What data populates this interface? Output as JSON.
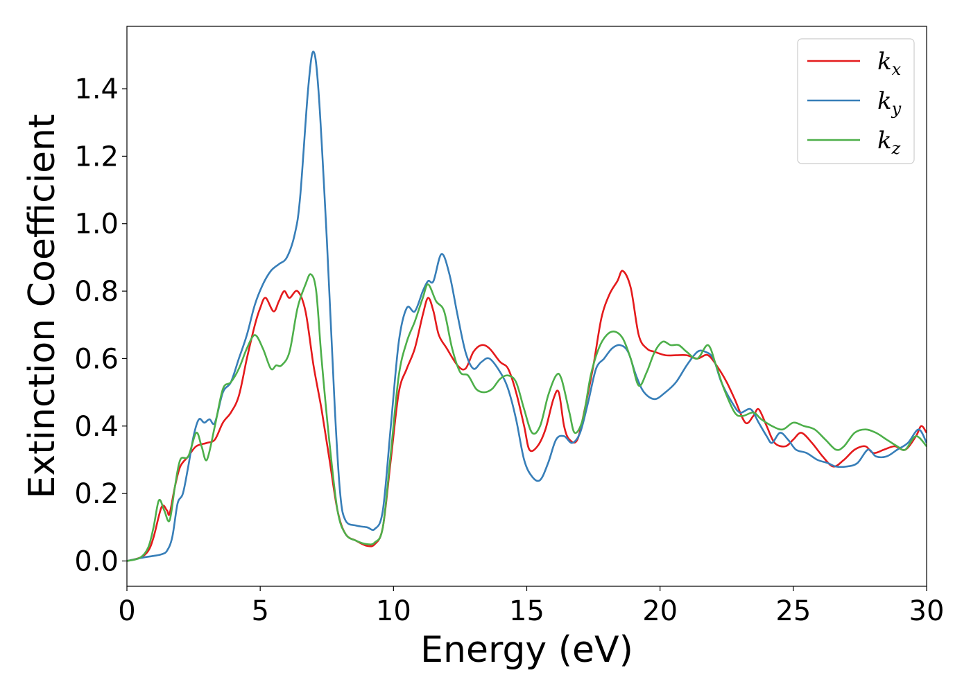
{
  "chart_data": {
    "type": "line",
    "title": "",
    "xlabel": "Energy (eV)",
    "ylabel": "Extinction Coefficient",
    "xlim": [
      0,
      30
    ],
    "ylim": [
      -0.075,
      1.585
    ],
    "xticks": [
      0,
      5,
      10,
      15,
      20,
      25,
      30
    ],
    "yticks": [
      0.0,
      0.2,
      0.4,
      0.6,
      0.8,
      1.0,
      1.2,
      1.4
    ],
    "grid": false,
    "legend": "top-right",
    "series": [
      {
        "name": "k",
        "subscript": "x",
        "color": "#e41a1c",
        "points": [
          [
            0,
            0
          ],
          [
            0.5,
            0.01
          ],
          [
            0.8,
            0.03
          ],
          [
            1.0,
            0.07
          ],
          [
            1.3,
            0.16
          ],
          [
            1.5,
            0.15
          ],
          [
            1.6,
            0.14
          ],
          [
            1.8,
            0.22
          ],
          [
            2.0,
            0.28
          ],
          [
            2.3,
            0.31
          ],
          [
            2.6,
            0.34
          ],
          [
            3.0,
            0.35
          ],
          [
            3.3,
            0.36
          ],
          [
            3.6,
            0.41
          ],
          [
            3.9,
            0.44
          ],
          [
            4.2,
            0.49
          ],
          [
            4.5,
            0.6
          ],
          [
            4.8,
            0.7
          ],
          [
            5.0,
            0.75
          ],
          [
            5.2,
            0.78
          ],
          [
            5.5,
            0.74
          ],
          [
            5.7,
            0.77
          ],
          [
            5.9,
            0.8
          ],
          [
            6.1,
            0.78
          ],
          [
            6.4,
            0.8
          ],
          [
            6.7,
            0.74
          ],
          [
            7.0,
            0.58
          ],
          [
            7.3,
            0.45
          ],
          [
            7.6,
            0.3
          ],
          [
            7.9,
            0.15
          ],
          [
            8.2,
            0.08
          ],
          [
            8.6,
            0.06
          ],
          [
            9.0,
            0.045
          ],
          [
            9.3,
            0.05
          ],
          [
            9.6,
            0.1
          ],
          [
            9.9,
            0.3
          ],
          [
            10.2,
            0.5
          ],
          [
            10.5,
            0.57
          ],
          [
            10.8,
            0.63
          ],
          [
            11.1,
            0.73
          ],
          [
            11.3,
            0.78
          ],
          [
            11.5,
            0.74
          ],
          [
            11.7,
            0.67
          ],
          [
            12.0,
            0.63
          ],
          [
            12.4,
            0.58
          ],
          [
            12.7,
            0.57
          ],
          [
            13.0,
            0.62
          ],
          [
            13.3,
            0.64
          ],
          [
            13.6,
            0.63
          ],
          [
            14.0,
            0.59
          ],
          [
            14.3,
            0.57
          ],
          [
            14.6,
            0.5
          ],
          [
            14.9,
            0.4
          ],
          [
            15.1,
            0.33
          ],
          [
            15.4,
            0.34
          ],
          [
            15.7,
            0.39
          ],
          [
            16.0,
            0.48
          ],
          [
            16.2,
            0.5
          ],
          [
            16.4,
            0.4
          ],
          [
            16.6,
            0.36
          ],
          [
            16.9,
            0.36
          ],
          [
            17.2,
            0.46
          ],
          [
            17.5,
            0.58
          ],
          [
            17.8,
            0.72
          ],
          [
            18.1,
            0.79
          ],
          [
            18.4,
            0.83
          ],
          [
            18.6,
            0.86
          ],
          [
            18.9,
            0.81
          ],
          [
            19.2,
            0.67
          ],
          [
            19.5,
            0.63
          ],
          [
            19.8,
            0.62
          ],
          [
            20.2,
            0.61
          ],
          [
            20.6,
            0.61
          ],
          [
            21.0,
            0.61
          ],
          [
            21.4,
            0.6
          ],
          [
            21.8,
            0.61
          ],
          [
            22.2,
            0.57
          ],
          [
            22.5,
            0.53
          ],
          [
            22.8,
            0.48
          ],
          [
            23.2,
            0.41
          ],
          [
            23.5,
            0.43
          ],
          [
            23.7,
            0.45
          ],
          [
            24.0,
            0.4
          ],
          [
            24.3,
            0.35
          ],
          [
            24.7,
            0.34
          ],
          [
            25.0,
            0.36
          ],
          [
            25.3,
            0.38
          ],
          [
            25.7,
            0.35
          ],
          [
            26.1,
            0.31
          ],
          [
            26.5,
            0.28
          ],
          [
            26.9,
            0.3
          ],
          [
            27.3,
            0.33
          ],
          [
            27.7,
            0.34
          ],
          [
            28.0,
            0.32
          ],
          [
            28.4,
            0.33
          ],
          [
            28.8,
            0.34
          ],
          [
            29.2,
            0.33
          ],
          [
            29.6,
            0.37
          ],
          [
            29.8,
            0.4
          ],
          [
            30.0,
            0.38
          ]
        ]
      },
      {
        "name": "k",
        "subscript": "y",
        "color": "#377eb8",
        "points": [
          [
            0,
            0
          ],
          [
            0.6,
            0.01
          ],
          [
            1.0,
            0.015
          ],
          [
            1.3,
            0.02
          ],
          [
            1.5,
            0.03
          ],
          [
            1.7,
            0.07
          ],
          [
            1.9,
            0.17
          ],
          [
            2.1,
            0.2
          ],
          [
            2.3,
            0.28
          ],
          [
            2.5,
            0.37
          ],
          [
            2.7,
            0.42
          ],
          [
            2.9,
            0.41
          ],
          [
            3.1,
            0.42
          ],
          [
            3.3,
            0.41
          ],
          [
            3.6,
            0.5
          ],
          [
            3.9,
            0.53
          ],
          [
            4.2,
            0.6
          ],
          [
            4.5,
            0.67
          ],
          [
            4.8,
            0.76
          ],
          [
            5.1,
            0.82
          ],
          [
            5.4,
            0.86
          ],
          [
            5.7,
            0.88
          ],
          [
            6.0,
            0.9
          ],
          [
            6.3,
            0.97
          ],
          [
            6.5,
            1.08
          ],
          [
            6.8,
            1.4
          ],
          [
            7.0,
            1.51
          ],
          [
            7.2,
            1.38
          ],
          [
            7.5,
            0.95
          ],
          [
            7.8,
            0.45
          ],
          [
            8.0,
            0.2
          ],
          [
            8.2,
            0.12
          ],
          [
            8.6,
            0.105
          ],
          [
            9.0,
            0.1
          ],
          [
            9.3,
            0.095
          ],
          [
            9.6,
            0.15
          ],
          [
            9.9,
            0.4
          ],
          [
            10.2,
            0.65
          ],
          [
            10.5,
            0.75
          ],
          [
            10.8,
            0.74
          ],
          [
            11.1,
            0.8
          ],
          [
            11.3,
            0.83
          ],
          [
            11.5,
            0.83
          ],
          [
            11.8,
            0.91
          ],
          [
            12.1,
            0.85
          ],
          [
            12.4,
            0.73
          ],
          [
            12.7,
            0.62
          ],
          [
            13.0,
            0.57
          ],
          [
            13.3,
            0.59
          ],
          [
            13.6,
            0.6
          ],
          [
            14.0,
            0.56
          ],
          [
            14.3,
            0.51
          ],
          [
            14.6,
            0.42
          ],
          [
            14.9,
            0.3
          ],
          [
            15.2,
            0.25
          ],
          [
            15.5,
            0.24
          ],
          [
            15.8,
            0.29
          ],
          [
            16.1,
            0.36
          ],
          [
            16.4,
            0.37
          ],
          [
            16.7,
            0.35
          ],
          [
            17.0,
            0.38
          ],
          [
            17.3,
            0.47
          ],
          [
            17.6,
            0.57
          ],
          [
            17.9,
            0.6
          ],
          [
            18.2,
            0.63
          ],
          [
            18.5,
            0.64
          ],
          [
            18.8,
            0.62
          ],
          [
            19.1,
            0.55
          ],
          [
            19.4,
            0.5
          ],
          [
            19.8,
            0.48
          ],
          [
            20.2,
            0.5
          ],
          [
            20.6,
            0.53
          ],
          [
            21.0,
            0.58
          ],
          [
            21.4,
            0.62
          ],
          [
            21.7,
            0.62
          ],
          [
            22.0,
            0.6
          ],
          [
            22.3,
            0.53
          ],
          [
            22.7,
            0.47
          ],
          [
            23.0,
            0.44
          ],
          [
            23.4,
            0.45
          ],
          [
            23.7,
            0.41
          ],
          [
            24.0,
            0.37
          ],
          [
            24.2,
            0.35
          ],
          [
            24.5,
            0.38
          ],
          [
            24.8,
            0.36
          ],
          [
            25.1,
            0.33
          ],
          [
            25.5,
            0.32
          ],
          [
            25.9,
            0.3
          ],
          [
            26.3,
            0.29
          ],
          [
            26.6,
            0.28
          ],
          [
            27.0,
            0.28
          ],
          [
            27.4,
            0.29
          ],
          [
            27.8,
            0.33
          ],
          [
            28.1,
            0.31
          ],
          [
            28.5,
            0.31
          ],
          [
            28.9,
            0.33
          ],
          [
            29.3,
            0.35
          ],
          [
            29.7,
            0.39
          ],
          [
            30.0,
            0.35
          ]
        ]
      },
      {
        "name": "k",
        "subscript": "z",
        "color": "#4daf4a",
        "points": [
          [
            0,
            0
          ],
          [
            0.5,
            0.01
          ],
          [
            0.8,
            0.04
          ],
          [
            1.0,
            0.1
          ],
          [
            1.2,
            0.18
          ],
          [
            1.4,
            0.15
          ],
          [
            1.6,
            0.12
          ],
          [
            1.8,
            0.22
          ],
          [
            2.0,
            0.3
          ],
          [
            2.3,
            0.31
          ],
          [
            2.6,
            0.38
          ],
          [
            2.8,
            0.34
          ],
          [
            3.0,
            0.3
          ],
          [
            3.3,
            0.4
          ],
          [
            3.6,
            0.51
          ],
          [
            3.9,
            0.53
          ],
          [
            4.2,
            0.57
          ],
          [
            4.5,
            0.63
          ],
          [
            4.8,
            0.67
          ],
          [
            5.1,
            0.63
          ],
          [
            5.4,
            0.57
          ],
          [
            5.6,
            0.58
          ],
          [
            5.8,
            0.58
          ],
          [
            6.1,
            0.62
          ],
          [
            6.4,
            0.75
          ],
          [
            6.7,
            0.82
          ],
          [
            6.9,
            0.85
          ],
          [
            7.1,
            0.8
          ],
          [
            7.3,
            0.6
          ],
          [
            7.6,
            0.35
          ],
          [
            7.9,
            0.15
          ],
          [
            8.2,
            0.08
          ],
          [
            8.6,
            0.06
          ],
          [
            9.0,
            0.05
          ],
          [
            9.3,
            0.055
          ],
          [
            9.6,
            0.1
          ],
          [
            9.9,
            0.32
          ],
          [
            10.2,
            0.55
          ],
          [
            10.5,
            0.65
          ],
          [
            10.8,
            0.71
          ],
          [
            11.1,
            0.78
          ],
          [
            11.3,
            0.82
          ],
          [
            11.6,
            0.77
          ],
          [
            11.9,
            0.74
          ],
          [
            12.2,
            0.63
          ],
          [
            12.5,
            0.56
          ],
          [
            12.8,
            0.55
          ],
          [
            13.1,
            0.51
          ],
          [
            13.4,
            0.5
          ],
          [
            13.7,
            0.51
          ],
          [
            14.0,
            0.54
          ],
          [
            14.3,
            0.55
          ],
          [
            14.6,
            0.53
          ],
          [
            14.9,
            0.45
          ],
          [
            15.2,
            0.38
          ],
          [
            15.5,
            0.4
          ],
          [
            15.8,
            0.49
          ],
          [
            16.1,
            0.55
          ],
          [
            16.3,
            0.54
          ],
          [
            16.6,
            0.44
          ],
          [
            16.8,
            0.38
          ],
          [
            17.1,
            0.42
          ],
          [
            17.4,
            0.55
          ],
          [
            17.7,
            0.63
          ],
          [
            18.0,
            0.67
          ],
          [
            18.3,
            0.68
          ],
          [
            18.6,
            0.66
          ],
          [
            18.9,
            0.6
          ],
          [
            19.2,
            0.52
          ],
          [
            19.5,
            0.56
          ],
          [
            19.8,
            0.62
          ],
          [
            20.1,
            0.65
          ],
          [
            20.4,
            0.64
          ],
          [
            20.7,
            0.64
          ],
          [
            21.0,
            0.62
          ],
          [
            21.4,
            0.6
          ],
          [
            21.8,
            0.64
          ],
          [
            22.1,
            0.58
          ],
          [
            22.4,
            0.51
          ],
          [
            22.8,
            0.44
          ],
          [
            23.1,
            0.43
          ],
          [
            23.5,
            0.44
          ],
          [
            23.8,
            0.42
          ],
          [
            24.2,
            0.4
          ],
          [
            24.6,
            0.39
          ],
          [
            25.0,
            0.41
          ],
          [
            25.4,
            0.4
          ],
          [
            25.8,
            0.39
          ],
          [
            26.2,
            0.36
          ],
          [
            26.6,
            0.33
          ],
          [
            26.9,
            0.34
          ],
          [
            27.3,
            0.38
          ],
          [
            27.7,
            0.39
          ],
          [
            28.1,
            0.38
          ],
          [
            28.5,
            0.36
          ],
          [
            28.9,
            0.34
          ],
          [
            29.2,
            0.33
          ],
          [
            29.6,
            0.37
          ],
          [
            30.0,
            0.34
          ]
        ]
      }
    ]
  }
}
